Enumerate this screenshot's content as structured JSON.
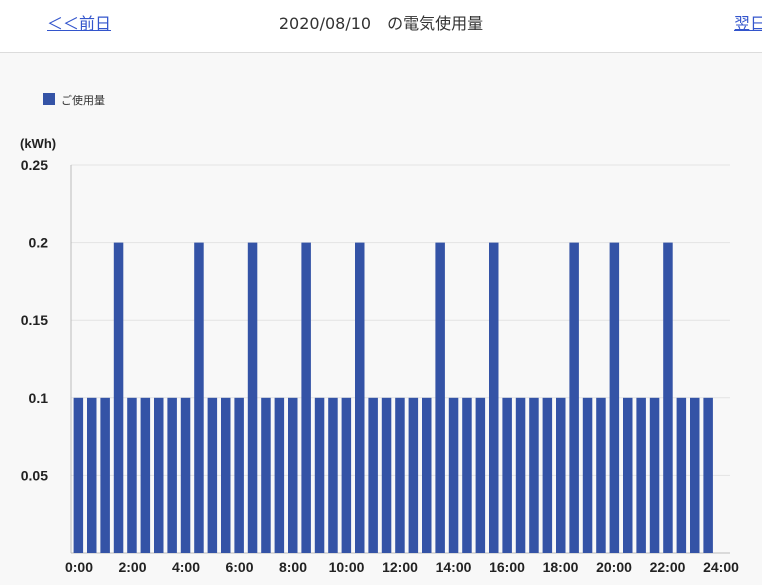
{
  "header": {
    "prev_label": "＜＜前日",
    "title": "2020/08/10　の電気使用量",
    "next_label": "翌日"
  },
  "colors": {
    "bar": "#3453a6",
    "link": "#3355cc",
    "grid": "#e3e3e3",
    "axis": "#bbbbbb",
    "background": "#f8f8f8"
  },
  "chart_data": {
    "type": "bar",
    "title": "",
    "xlabel": "",
    "ylabel": "(kWh)",
    "legend": [
      "ご使用量"
    ],
    "legend_position": "top-left",
    "ylim": [
      0,
      0.25
    ],
    "yticks": [
      "0.25",
      "0.2",
      "0.15",
      "0.1",
      "0.05"
    ],
    "xticks": [
      "0:00",
      "2:00",
      "4:00",
      "6:00",
      "8:00",
      "10:00",
      "12:00",
      "14:00",
      "16:00",
      "18:00",
      "20:00",
      "22:00",
      "24:00"
    ],
    "grid": true,
    "categories": [
      "0:00",
      "0:30",
      "1:00",
      "1:30",
      "2:00",
      "2:30",
      "3:00",
      "3:30",
      "4:00",
      "4:30",
      "5:00",
      "5:30",
      "6:00",
      "6:30",
      "7:00",
      "7:30",
      "8:00",
      "8:30",
      "9:00",
      "9:30",
      "10:00",
      "10:30",
      "11:00",
      "11:30",
      "12:00",
      "12:30",
      "13:00",
      "13:30",
      "14:00",
      "14:30",
      "15:00",
      "15:30",
      "16:00",
      "16:30",
      "17:00",
      "17:30",
      "18:00",
      "18:30",
      "19:00",
      "19:30",
      "20:00",
      "20:30",
      "21:00",
      "21:30",
      "22:00",
      "22:30",
      "23:00",
      "23:30"
    ],
    "series": [
      {
        "name": "ご使用量",
        "values": [
          0.1,
          0.1,
          0.1,
          0.2,
          0.1,
          0.1,
          0.1,
          0.1,
          0.1,
          0.2,
          0.1,
          0.1,
          0.1,
          0.2,
          0.1,
          0.1,
          0.1,
          0.2,
          0.1,
          0.1,
          0.1,
          0.2,
          0.1,
          0.1,
          0.1,
          0.1,
          0.1,
          0.2,
          0.1,
          0.1,
          0.1,
          0.2,
          0.1,
          0.1,
          0.1,
          0.1,
          0.1,
          0.2,
          0.1,
          0.1,
          0.2,
          0.1,
          0.1,
          0.1,
          0.2,
          0.1,
          0.1,
          0.1
        ]
      }
    ]
  }
}
